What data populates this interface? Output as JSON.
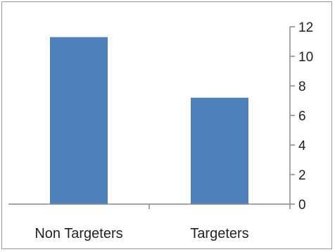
{
  "chart_data": {
    "type": "bar",
    "title": "",
    "xlabel": "",
    "ylabel": "",
    "categories": [
      "Non Targeters",
      "Targeters"
    ],
    "values": [
      11.3,
      7.2
    ],
    "ylim": [
      0,
      12
    ],
    "yticks": [
      "0",
      "2",
      "4",
      "6",
      "8",
      "10",
      "12"
    ],
    "y_axis_side": "right",
    "grid": false,
    "legend": "none",
    "bar_color": "#4f81bd"
  }
}
